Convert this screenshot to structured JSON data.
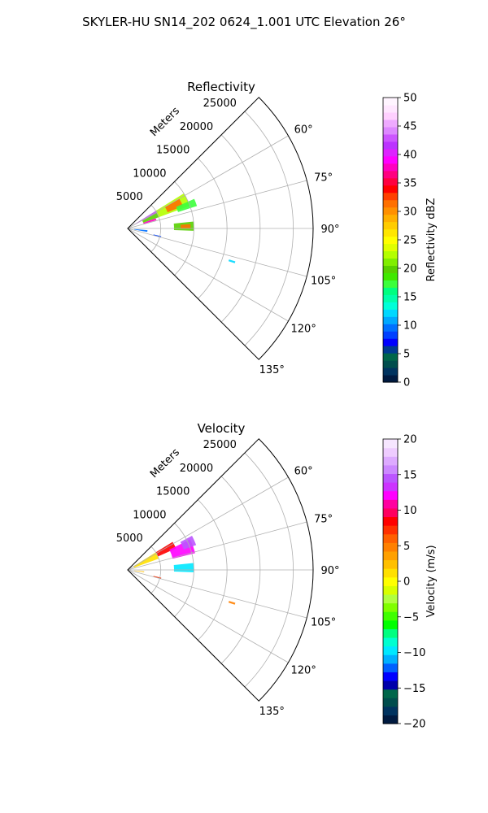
{
  "figure": {
    "suptitle": "SKYLER-HU  SN14_202  0624_1.001 UTC Elevation 26°"
  },
  "chart_data": [
    {
      "type": "polar_sector_scan",
      "title": "Reflectivity",
      "radial_label": "Meters",
      "radial_ticks": [
        "5000",
        "10000",
        "15000",
        "20000",
        "25000"
      ],
      "radial_tick_values": [
        5000,
        10000,
        15000,
        20000,
        25000
      ],
      "rmax": 28000,
      "azimuth_range_deg": [
        45,
        135
      ],
      "angle_ticks": [
        "60°",
        "75°",
        "90°",
        "105°",
        "120°",
        "135°"
      ],
      "angle_tick_values": [
        60,
        75,
        90,
        105,
        120,
        135
      ],
      "grid": true,
      "colorbar": {
        "label": "Reflectivity dBZ",
        "ticks": [
          "0",
          "5",
          "10",
          "15",
          "20",
          "25",
          "30",
          "35",
          "40",
          "45",
          "50"
        ],
        "min": 0,
        "max": 50,
        "colors": [
          "#001a40",
          "#00335f",
          "#004d4d",
          "#00664a",
          "#003b8f",
          "#0000ff",
          "#0040ff",
          "#0070ff",
          "#00a8ff",
          "#00d8ff",
          "#00ffd8",
          "#00ffaa",
          "#00ff80",
          "#3cff3c",
          "#40e800",
          "#58d000",
          "#80ee00",
          "#b4ff00",
          "#e0ff00",
          "#ffff00",
          "#ffe600",
          "#ffcc00",
          "#ffb000",
          "#ff9000",
          "#ff7000",
          "#ff4000",
          "#ff0000",
          "#ff0040",
          "#ff0080",
          "#ff00c0",
          "#ff00ff",
          "#dd22ff",
          "#bb33ff",
          "#cc55ff",
          "#dd88ff",
          "#eeaaff",
          "#ffd0ff",
          "#ffe6ff",
          "#fff4ff"
        ]
      },
      "echo_regions": [
        {
          "az": [
            58,
            62
          ],
          "r": [
            1000,
            5200
          ],
          "value": 42
        },
        {
          "az": [
            62,
            70
          ],
          "r": [
            2500,
            5000
          ],
          "value": 20
        },
        {
          "az": [
            70,
            74
          ],
          "r": [
            2500,
            4500
          ],
          "value": 38
        },
        {
          "az": [
            58,
            70
          ],
          "r": [
            5000,
            10000
          ],
          "value": 22
        },
        {
          "az": [
            60,
            68
          ],
          "r": [
            6500,
            9000
          ],
          "value": 31
        },
        {
          "az": [
            66,
            72
          ],
          "r": [
            8000,
            11000
          ],
          "value": 17
        },
        {
          "az": [
            84,
            92
          ],
          "r": [
            7000,
            10000
          ],
          "value": 20
        },
        {
          "az": [
            86,
            90
          ],
          "r": [
            8000,
            9500
          ],
          "value": 31
        },
        {
          "az": [
            95,
            100
          ],
          "r": [
            1000,
            3000
          ],
          "value": 10
        },
        {
          "az": [
            103,
            105
          ],
          "r": [
            4000,
            5200
          ],
          "value": 8
        },
        {
          "az": [
            107,
            108
          ],
          "r": [
            16000,
            17000
          ],
          "value": 12
        }
      ]
    },
    {
      "type": "polar_sector_scan",
      "title": "Velocity",
      "radial_label": "Meters",
      "radial_ticks": [
        "5000",
        "10000",
        "15000",
        "20000",
        "25000"
      ],
      "radial_tick_values": [
        5000,
        10000,
        15000,
        20000,
        25000
      ],
      "rmax": 28000,
      "azimuth_range_deg": [
        45,
        135
      ],
      "angle_ticks": [
        "60°",
        "75°",
        "90°",
        "105°",
        "120°",
        "135°"
      ],
      "angle_tick_values": [
        60,
        75,
        90,
        105,
        120,
        135
      ],
      "grid": true,
      "colorbar": {
        "label": "Velocity (m/s)",
        "ticks": [
          "−20",
          "−15",
          "−10",
          "−5",
          "0",
          "5",
          "10",
          "15",
          "20"
        ],
        "min": -20,
        "max": 20,
        "colors": [
          "#001a40",
          "#00335f",
          "#004d4d",
          "#00664a",
          "#0000aa",
          "#0000ff",
          "#0060ff",
          "#00b0ff",
          "#00e8ff",
          "#00ffd0",
          "#00ff80",
          "#00ff00",
          "#40ff00",
          "#80ff00",
          "#b0ff40",
          "#d8ff00",
          "#ffff00",
          "#ffe000",
          "#ffc000",
          "#ffa000",
          "#ff8000",
          "#ff6000",
          "#ff3000",
          "#ff0000",
          "#ff0060",
          "#ff00a0",
          "#ff00ff",
          "#cc33ff",
          "#bb55ff",
          "#cc88ff",
          "#ddaaff",
          "#eeccff",
          "#f6e6ff"
        ]
      },
      "echo_regions": [
        {
          "az": [
            58,
            70
          ],
          "r": [
            1000,
            5000
          ],
          "value": 1
        },
        {
          "az": [
            58,
            66
          ],
          "r": [
            5000,
            8000
          ],
          "value": 8
        },
        {
          "az": [
            64,
            76
          ],
          "r": [
            7000,
            10500
          ],
          "value": 12
        },
        {
          "az": [
            62,
            70
          ],
          "r": [
            9000,
            11000
          ],
          "value": 15
        },
        {
          "az": [
            84,
            92
          ],
          "r": [
            7000,
            10000
          ],
          "value": -10
        },
        {
          "az": [
            95,
            98
          ],
          "r": [
            1000,
            2500
          ],
          "value": 2
        },
        {
          "az": [
            103,
            105
          ],
          "r": [
            4000,
            5200
          ],
          "value": 7
        },
        {
          "az": [
            107,
            108
          ],
          "r": [
            16000,
            17000
          ],
          "value": 5
        }
      ]
    }
  ]
}
